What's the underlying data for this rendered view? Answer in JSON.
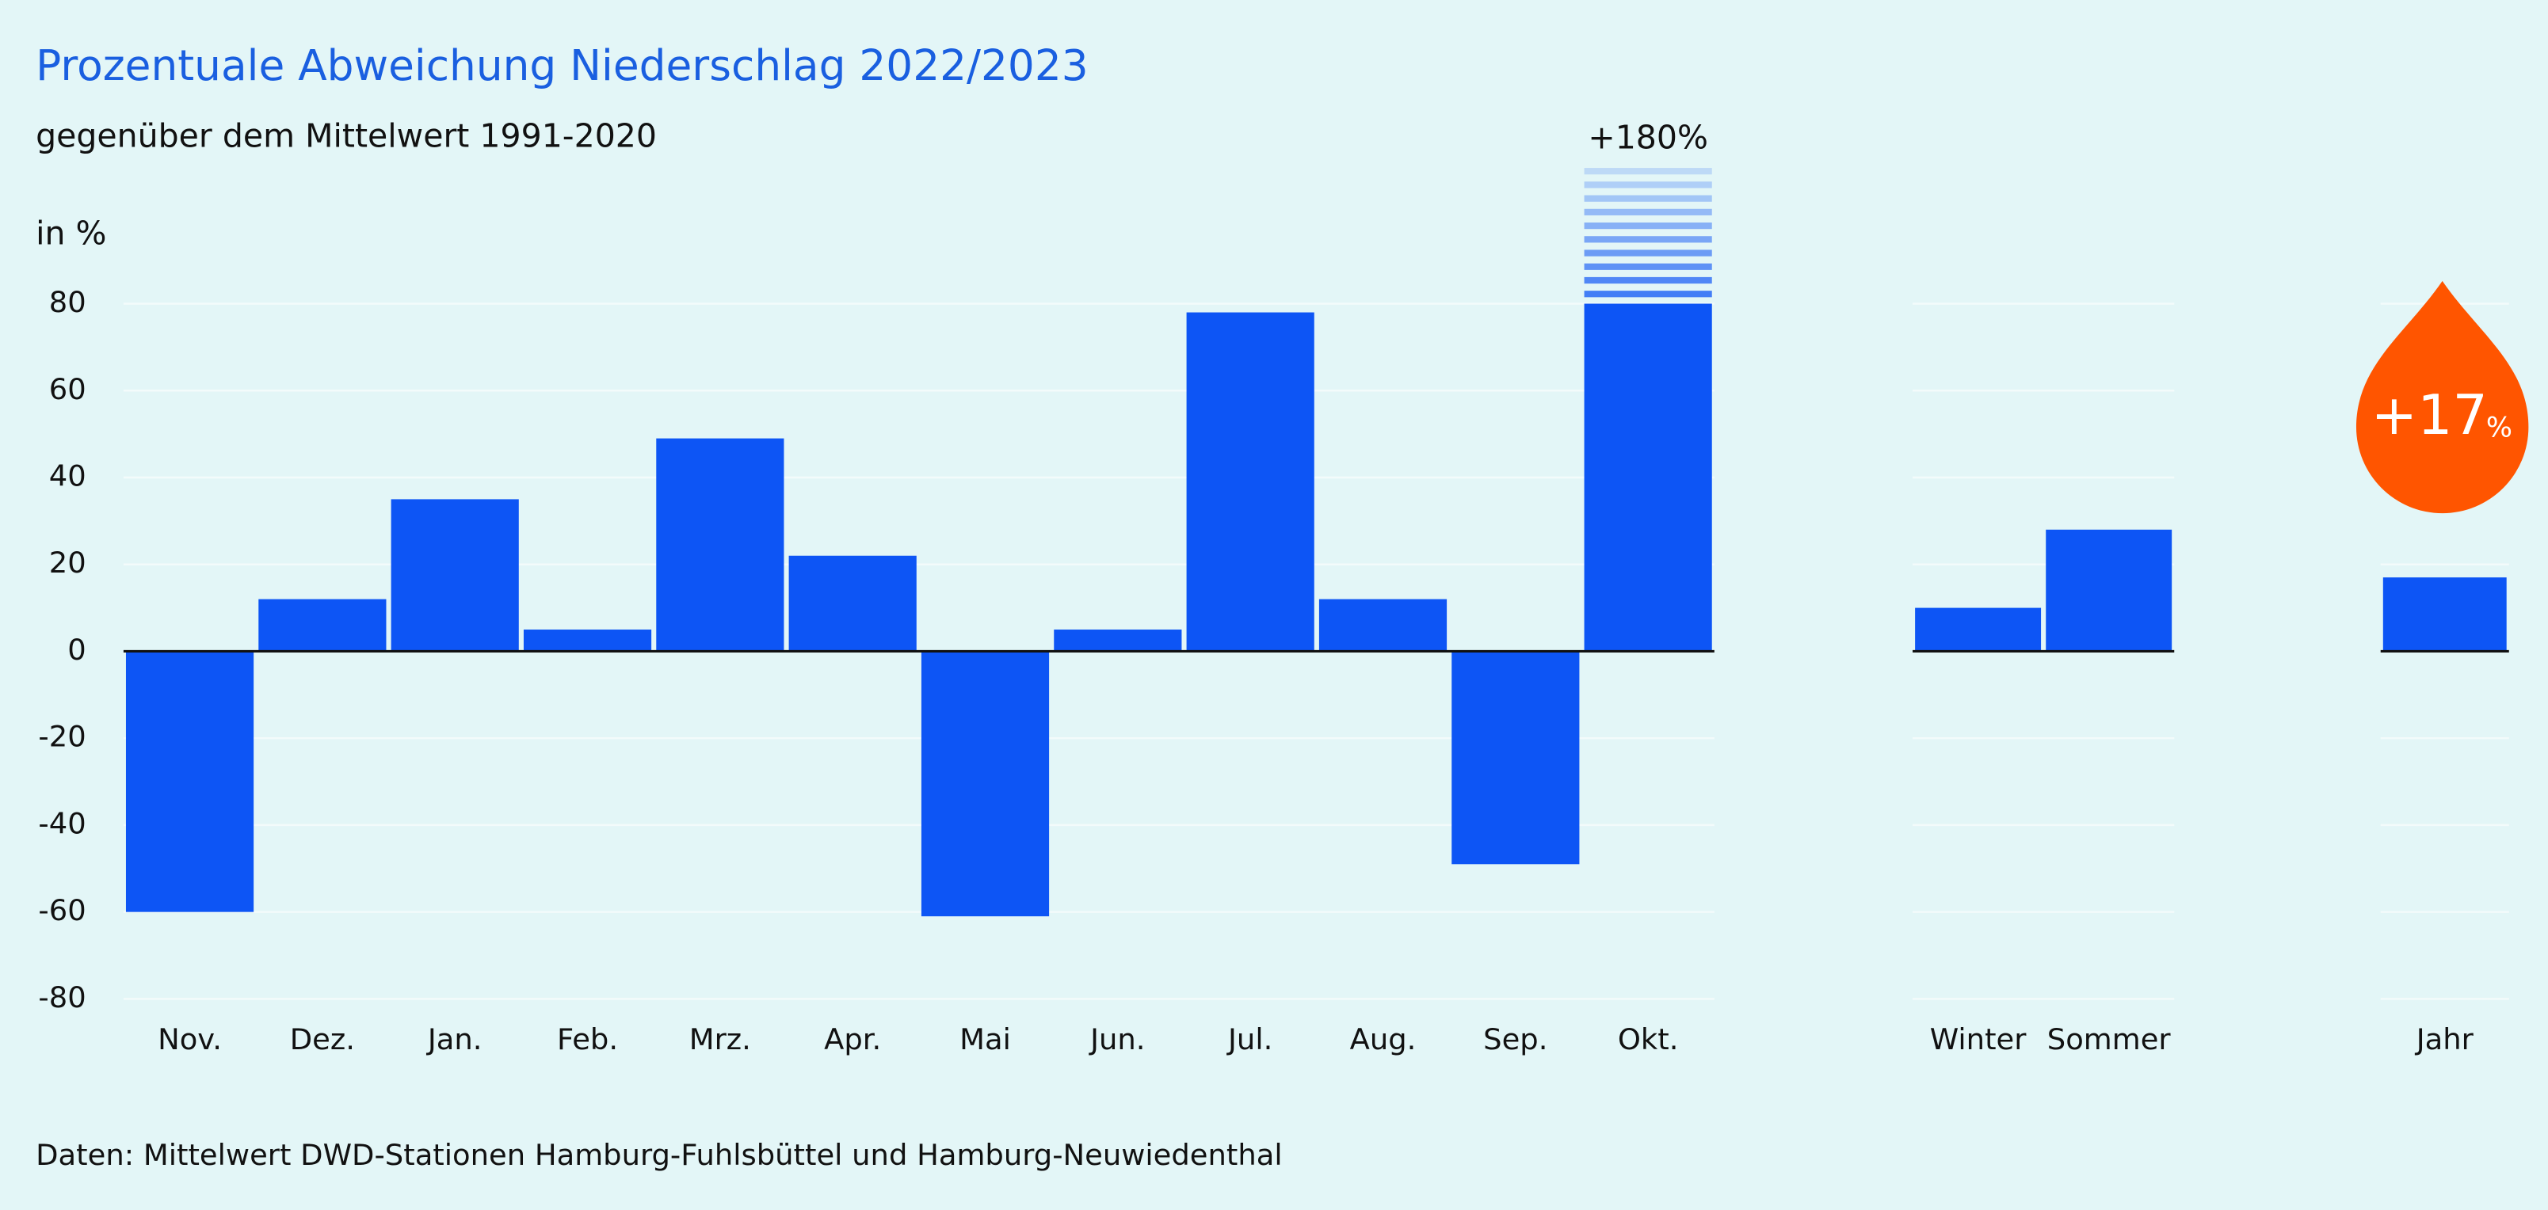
{
  "chart_data": {
    "type": "bar",
    "title": "Prozentuale Abweichung Niederschlag 2022/2023",
    "subtitle": "gegenüber dem Mittelwert 1991-2020",
    "ylabel": "in %",
    "footer": "Daten: Mittelwert DWD-Stationen Hamburg-Fuhlsbüttel und Hamburg-Neuwiedenthal",
    "color": "#0d55f5",
    "ylim": [
      -80,
      80
    ],
    "yticks": [
      -80,
      -60,
      -40,
      -20,
      0,
      20,
      40,
      60,
      80
    ],
    "grid": true,
    "groups": [
      {
        "categories": [
          "Nov.",
          "Dez.",
          "Jan.",
          "Feb.",
          "Mrz.",
          "Apr.",
          "Mai",
          "Jun.",
          "Jul.",
          "Aug.",
          "Sep.",
          "Okt."
        ],
        "values": [
          -60,
          12,
          35,
          5,
          49,
          22,
          -61,
          5,
          78,
          12,
          -49,
          180
        ],
        "value_labels": [
          null,
          null,
          null,
          null,
          null,
          null,
          null,
          null,
          null,
          null,
          null,
          "+180%"
        ]
      },
      {
        "categories": [
          "Winter",
          "Sommer"
        ],
        "values": [
          10,
          28
        ]
      },
      {
        "categories": [
          "Jahr"
        ],
        "values": [
          17
        ]
      }
    ],
    "annotation": {
      "label": "+17",
      "unit": "%",
      "color": "#ff5500"
    }
  }
}
